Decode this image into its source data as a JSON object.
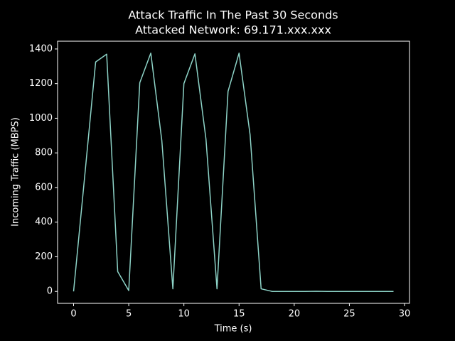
{
  "chart_data": {
    "type": "line",
    "title": "Attack Traffic In The Past 30 Seconds",
    "subtitle": "Attacked Network: 69.171.xxx.xxx",
    "x_label": "Time (s)",
    "y_label": "Incoming Traffic (MBPS)",
    "x": [
      0,
      1,
      2,
      3,
      4,
      5,
      6,
      7,
      8,
      9,
      10,
      11,
      12,
      13,
      14,
      15,
      16,
      17,
      18,
      19,
      20,
      21,
      22,
      23,
      24,
      25,
      26,
      27,
      28,
      29
    ],
    "series": [
      {
        "name": "Incoming Traffic",
        "color": "#8dd3c7",
        "values": [
          0,
          660,
          1325,
          1370,
          115,
          5,
          1205,
          1376,
          870,
          15,
          1200,
          1372,
          880,
          15,
          1155,
          1376,
          905,
          15,
          0,
          0,
          0,
          0,
          1,
          0,
          0,
          0,
          0,
          0,
          0,
          0
        ]
      }
    ],
    "xlim": [
      -1.45,
      30.45
    ],
    "xticks": [
      0,
      5,
      10,
      15,
      20,
      25,
      30
    ],
    "ylim": [
      -68.8,
      1444.8
    ],
    "yticks": [
      0,
      200,
      400,
      600,
      800,
      1000,
      1200,
      1400
    ]
  }
}
